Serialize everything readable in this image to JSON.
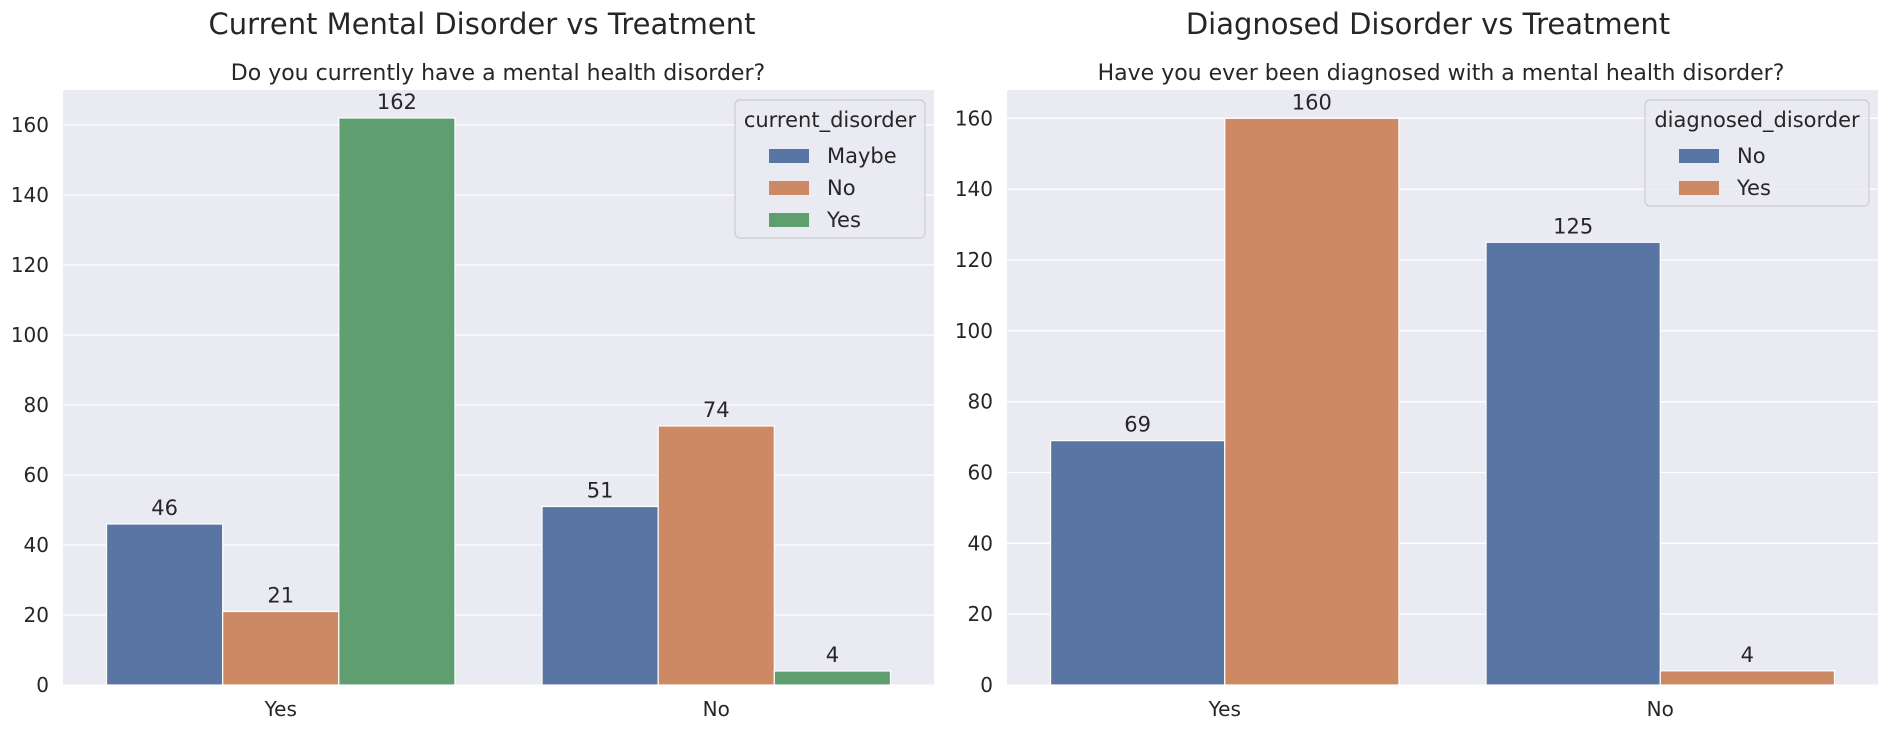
{
  "chart_data": [
    {
      "type": "bar",
      "title": "Current Mental Disorder vs Treatment",
      "subtitle": "Do you currently have a mental health disorder?",
      "xlabel": "",
      "ylabel": "",
      "categories": [
        "Yes",
        "No"
      ],
      "series": [
        {
          "name": "Maybe",
          "values": [
            46,
            51
          ],
          "color": "#5875a4"
        },
        {
          "name": "No",
          "values": [
            21,
            74
          ],
          "color": "#cc8963"
        },
        {
          "name": "Yes",
          "values": [
            162,
            4
          ],
          "color": "#5f9e6e"
        }
      ],
      "ylim": [
        0,
        170
      ],
      "yticks": [
        0,
        20,
        40,
        60,
        80,
        100,
        120,
        140,
        160
      ],
      "legend_title": "current_disorder",
      "legend_position": "top-right",
      "grid": true,
      "background": "#eaeaf2"
    },
    {
      "type": "bar",
      "title": "Diagnosed Disorder vs Treatment",
      "subtitle": "Have you ever been diagnosed with a mental health disorder?",
      "xlabel": "",
      "ylabel": "",
      "categories": [
        "Yes",
        "No"
      ],
      "series": [
        {
          "name": "No",
          "values": [
            69,
            125
          ],
          "color": "#5875a4"
        },
        {
          "name": "Yes",
          "values": [
            160,
            4
          ],
          "color": "#cc8963"
        }
      ],
      "ylim": [
        0,
        168
      ],
      "yticks": [
        0,
        20,
        40,
        60,
        80,
        100,
        120,
        140,
        160
      ],
      "legend_title": "diagnosed_disorder",
      "legend_position": "top-right",
      "grid": true,
      "background": "#eaeaf2"
    }
  ]
}
